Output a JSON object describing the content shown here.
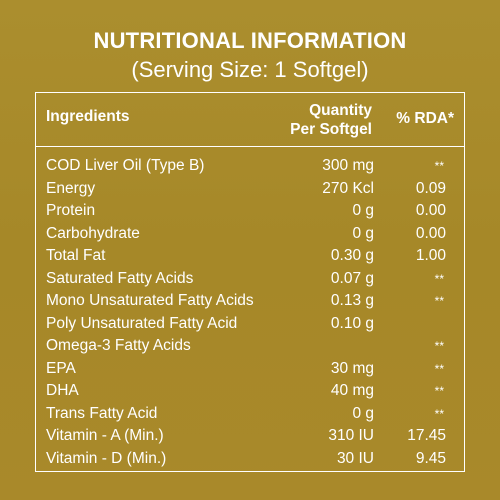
{
  "title": "NUTRITIONAL INFORMATION",
  "subtitle": "(Serving Size: 1 Softgel)",
  "table": {
    "headers": {
      "ingredients": "Ingredients",
      "quantity_line1": "Quantity",
      "quantity_line2": "Per Softgel",
      "rda": "% RDA*"
    },
    "rows": [
      {
        "name": "COD Liver Oil (Type B)",
        "quantity": "300 mg",
        "rda": "**"
      },
      {
        "name": "Energy",
        "quantity": "270 Kcl",
        "rda": "0.09"
      },
      {
        "name": "Protein",
        "quantity": "0 g",
        "rda": "0.00"
      },
      {
        "name": "Carbohydrate",
        "quantity": "0 g",
        "rda": "0.00"
      },
      {
        "name": "Total Fat",
        "quantity": "0.30 g",
        "rda": "1.00"
      },
      {
        "name": "Saturated Fatty Acids",
        "quantity": "0.07 g",
        "rda": "**"
      },
      {
        "name": "Mono Unsaturated Fatty Acids",
        "quantity": "0.13 g",
        "rda": "**"
      },
      {
        "name": "Poly Unsaturated Fatty Acid",
        "quantity": "0.10 g",
        "rda": ""
      },
      {
        "name": "Omega-3 Fatty Acids",
        "quantity": "",
        "rda": "**"
      },
      {
        "name": "EPA",
        "quantity": "30 mg",
        "rda": "**"
      },
      {
        "name": "DHA",
        "quantity": "40 mg",
        "rda": "**"
      },
      {
        "name": "Trans Fatty Acid",
        "quantity": "0 g",
        "rda": "**"
      },
      {
        "name": "Vitamin - A (Min.)",
        "quantity": "310 IU",
        "rda": "17.45"
      },
      {
        "name": "Vitamin - D (Min.)",
        "quantity": "30 IU",
        "rda": "9.45"
      }
    ]
  },
  "colors": {
    "background": "#a88b2a",
    "text": "#ffffff",
    "border": "#ffffff"
  }
}
